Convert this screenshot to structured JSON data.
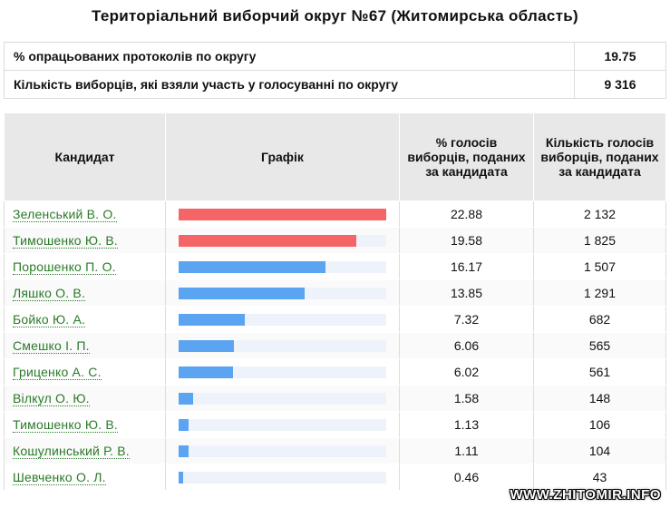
{
  "title": "Територіальний виборчий округ №67 (Житомирська область)",
  "summary": [
    {
      "label": "% опрацьованих протоколів по округу",
      "value": "19.75"
    },
    {
      "label": "Кількість виборців, які взяли участь у голосуванні по округу",
      "value": "9 316"
    }
  ],
  "table": {
    "headers": {
      "candidate": "Кандидат",
      "chart": "Графік",
      "percent": "% голосів виборців, поданих за кандидата",
      "count": "Кількість голосів виборців, поданих за кандидата"
    }
  },
  "colors": {
    "leader": "#f56467",
    "other": "#5aa4f1",
    "track": "#eef3fb",
    "link": "#2a7a28"
  },
  "chart_data": {
    "type": "bar",
    "title": "",
    "xlabel": "",
    "ylabel": "",
    "ylim": [
      0,
      22.88
    ],
    "categories": [
      "Зеленський В. О.",
      "Тимошенко Ю. В.",
      "Порошенко П. О.",
      "Ляшко О. В.",
      "Бойко Ю. А.",
      "Смешко І. П.",
      "Гриценко А. С.",
      "Вілкул О. Ю.",
      "Тимошенко Ю. В.",
      "Кошулинський Р. В.",
      "Шевченко О. Л."
    ],
    "values": [
      22.88,
      19.58,
      16.17,
      13.85,
      7.32,
      6.06,
      6.02,
      1.58,
      1.13,
      1.11,
      0.46
    ],
    "percent_labels": [
      "22.88",
      "19.58",
      "16.17",
      "13.85",
      "7.32",
      "6.06",
      "6.02",
      "1.58",
      "1.13",
      "1.11",
      "0.46"
    ],
    "counts": [
      "2 132",
      "1 825",
      "1 507",
      "1 291",
      "682",
      "565",
      "561",
      "148",
      "106",
      "104",
      "43"
    ],
    "highlighted": [
      true,
      true,
      false,
      false,
      false,
      false,
      false,
      false,
      false,
      false,
      false
    ]
  },
  "watermark": "WWW.ZHITOMIR.INFO"
}
